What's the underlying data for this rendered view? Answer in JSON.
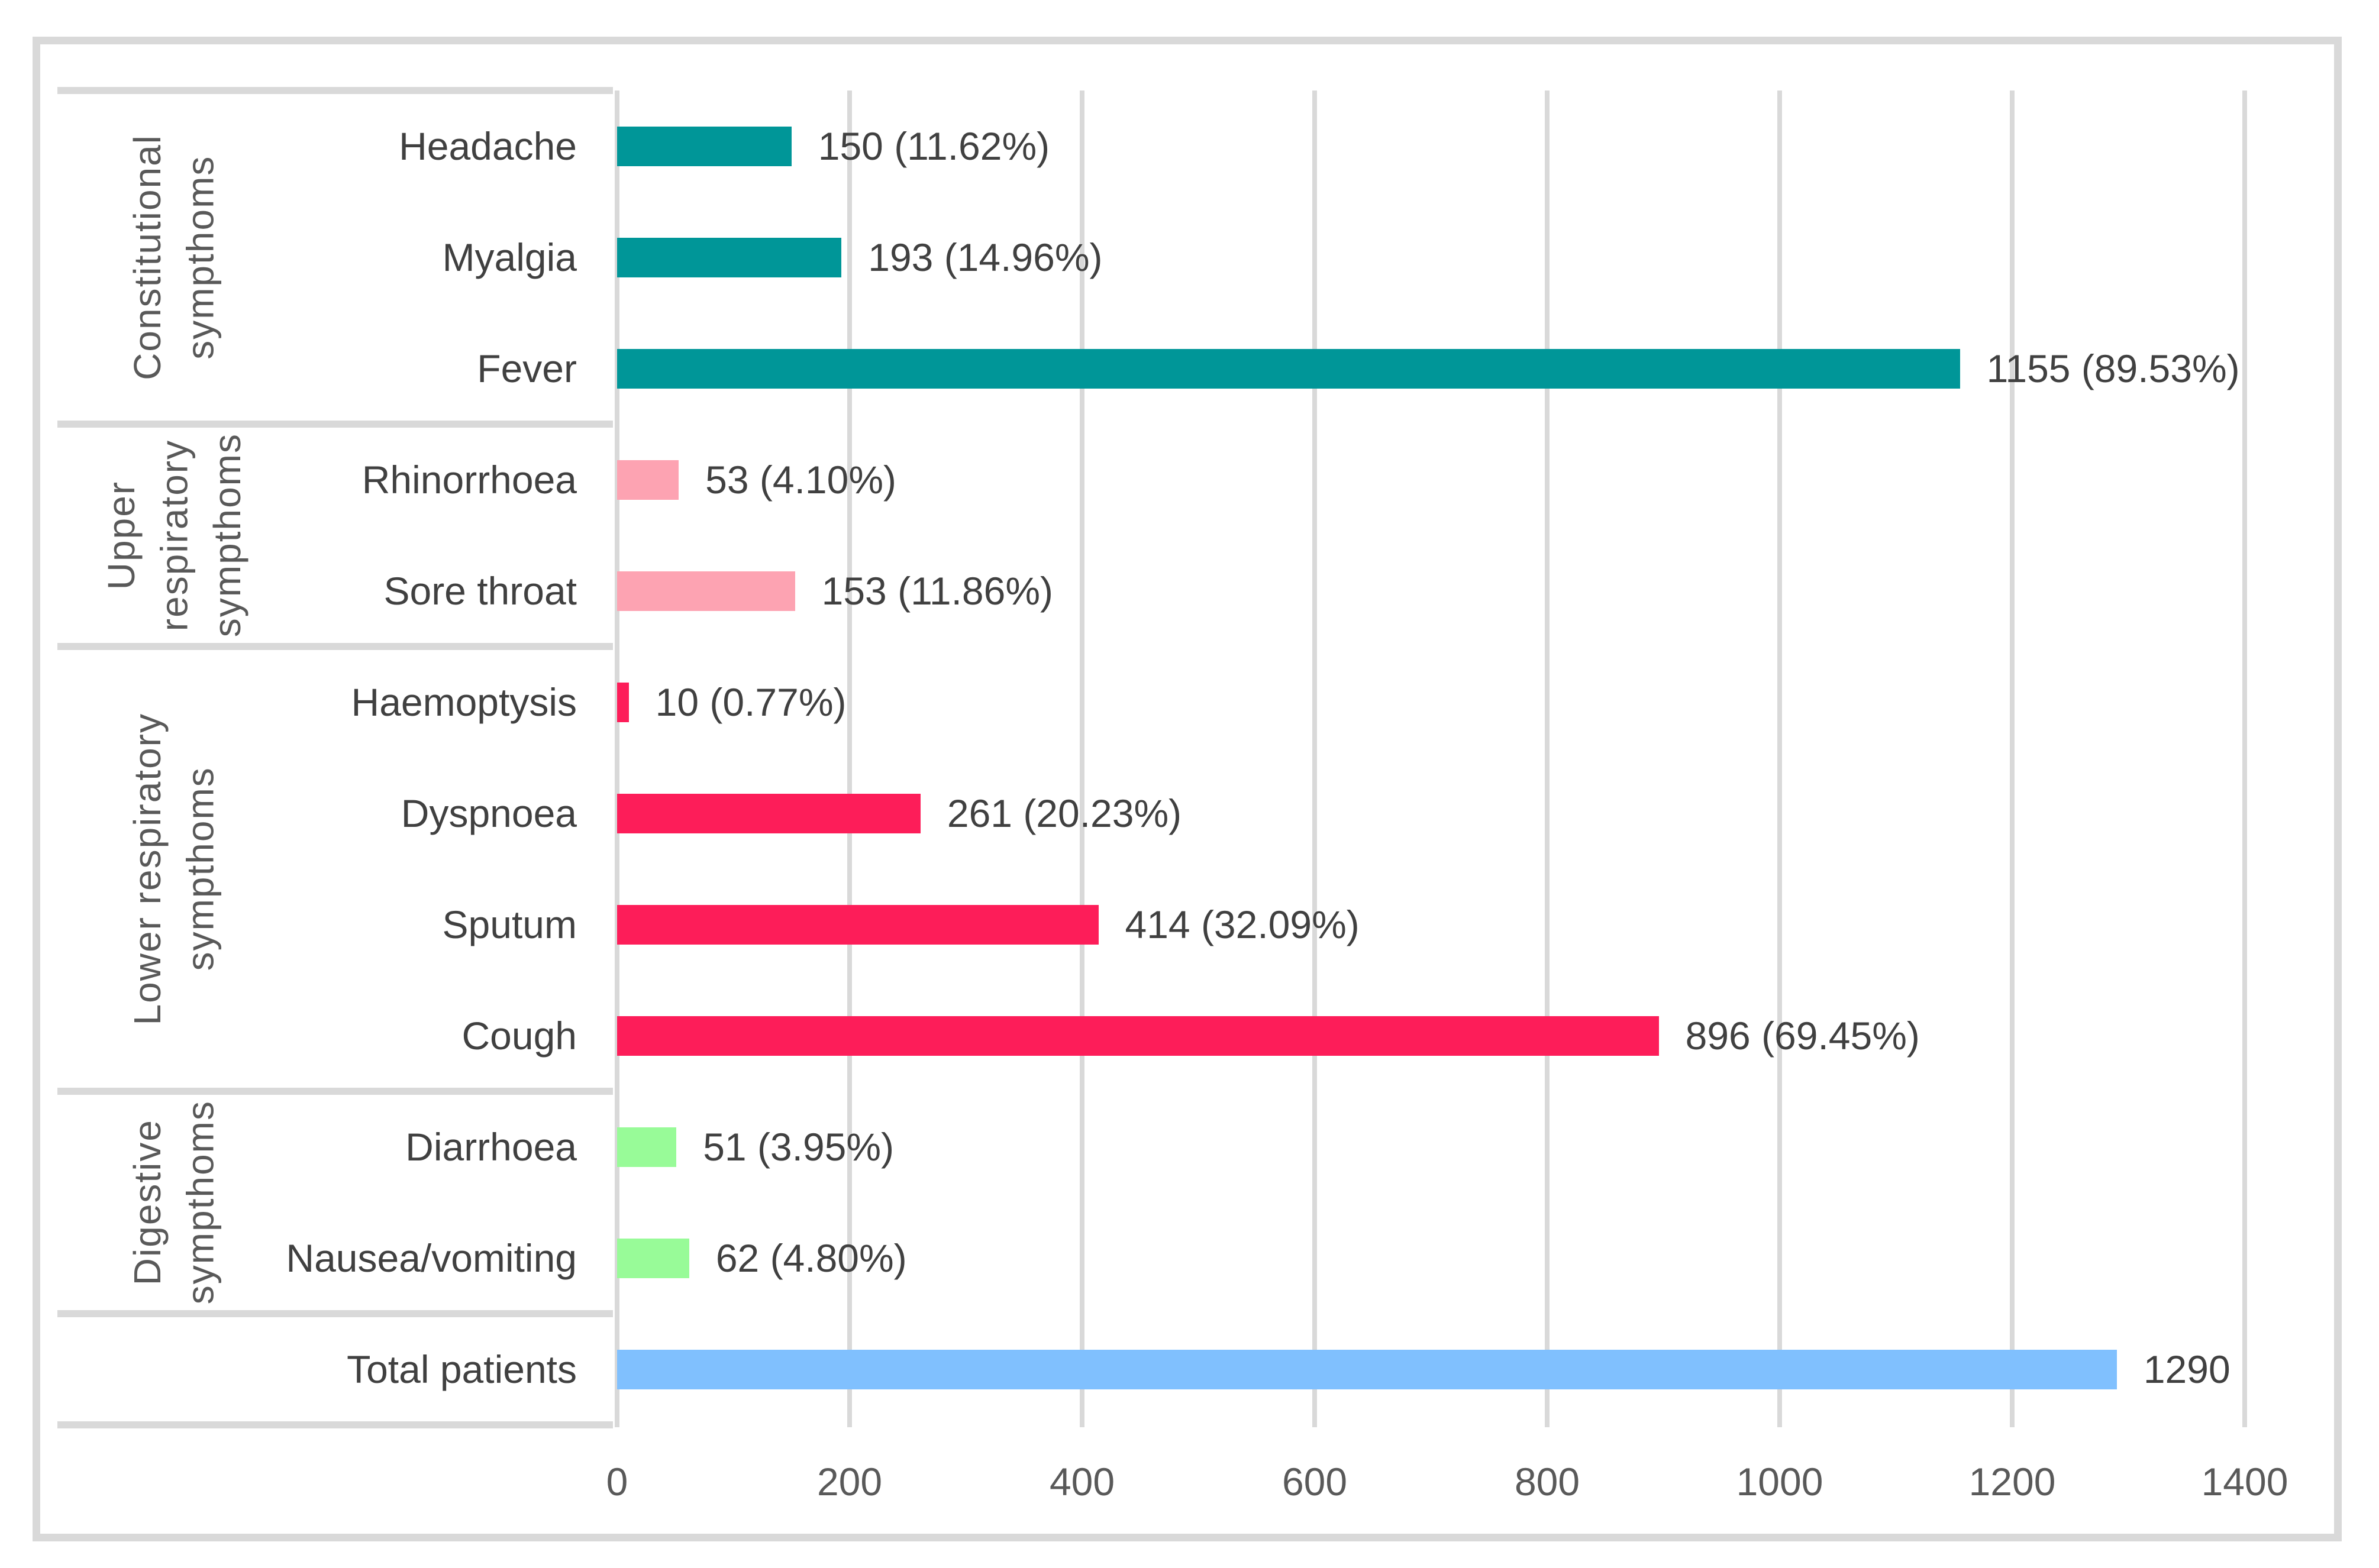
{
  "chart_data": {
    "type": "bar",
    "orientation": "horizontal",
    "title": "",
    "xlabel": "",
    "ylabel": "",
    "x_axis": {
      "min": 0,
      "max": 1400,
      "tick_interval": 200,
      "ticks": [
        0,
        200,
        400,
        600,
        800,
        1000,
        1200,
        1400
      ],
      "grid": true
    },
    "legend": "none",
    "groups": [
      {
        "label_lines": [
          "Constitutional",
          "sympthoms"
        ],
        "color": "#009698",
        "items": [
          {
            "category": "Headache",
            "value": 150,
            "label": "150 (11.62%)"
          },
          {
            "category": "Myalgia",
            "value": 193,
            "label": "193 (14.96%)"
          },
          {
            "category": "Fever",
            "value": 1155,
            "label": "1155 (89.53%)"
          }
        ]
      },
      {
        "label_lines": [
          "Upper",
          "respiratory",
          "sympthoms"
        ],
        "color": "#FDA3B2",
        "items": [
          {
            "category": "Rhinorrhoea",
            "value": 53,
            "label": "53 (4.10%)"
          },
          {
            "category": "Sore throat",
            "value": 153,
            "label": "153 (11.86%)"
          }
        ]
      },
      {
        "label_lines": [
          "Lower respiratory",
          "sympthoms"
        ],
        "color": "#FD1D59",
        "items": [
          {
            "category": "Haemoptysis",
            "value": 10,
            "label": "10 (0.77%)"
          },
          {
            "category": "Dyspnoea",
            "value": 261,
            "label": "261 (20.23%)"
          },
          {
            "category": "Sputum",
            "value": 414,
            "label": "414 (32.09%)"
          },
          {
            "category": "Cough",
            "value": 896,
            "label": "896 (69.45%)"
          }
        ]
      },
      {
        "label_lines": [
          "Digestive",
          "sympthoms"
        ],
        "color": "#98FB98",
        "items": [
          {
            "category": "Diarrhoea",
            "value": 51,
            "label": "51 (3.95%)"
          },
          {
            "category": "Nausea/vomiting",
            "value": 62,
            "label": "62 (4.80%)"
          }
        ]
      },
      {
        "label_lines": [],
        "color": "#80C0FE",
        "items": [
          {
            "category": "Total patients",
            "value": 1290,
            "label": "1290"
          }
        ]
      }
    ],
    "colors": {
      "grid": "#D9D9D9",
      "frame": "#D9D9D9",
      "label_text": "#404040",
      "tick_text": "#595959",
      "group_text": "#595959",
      "background": "#FFFFFF"
    }
  }
}
